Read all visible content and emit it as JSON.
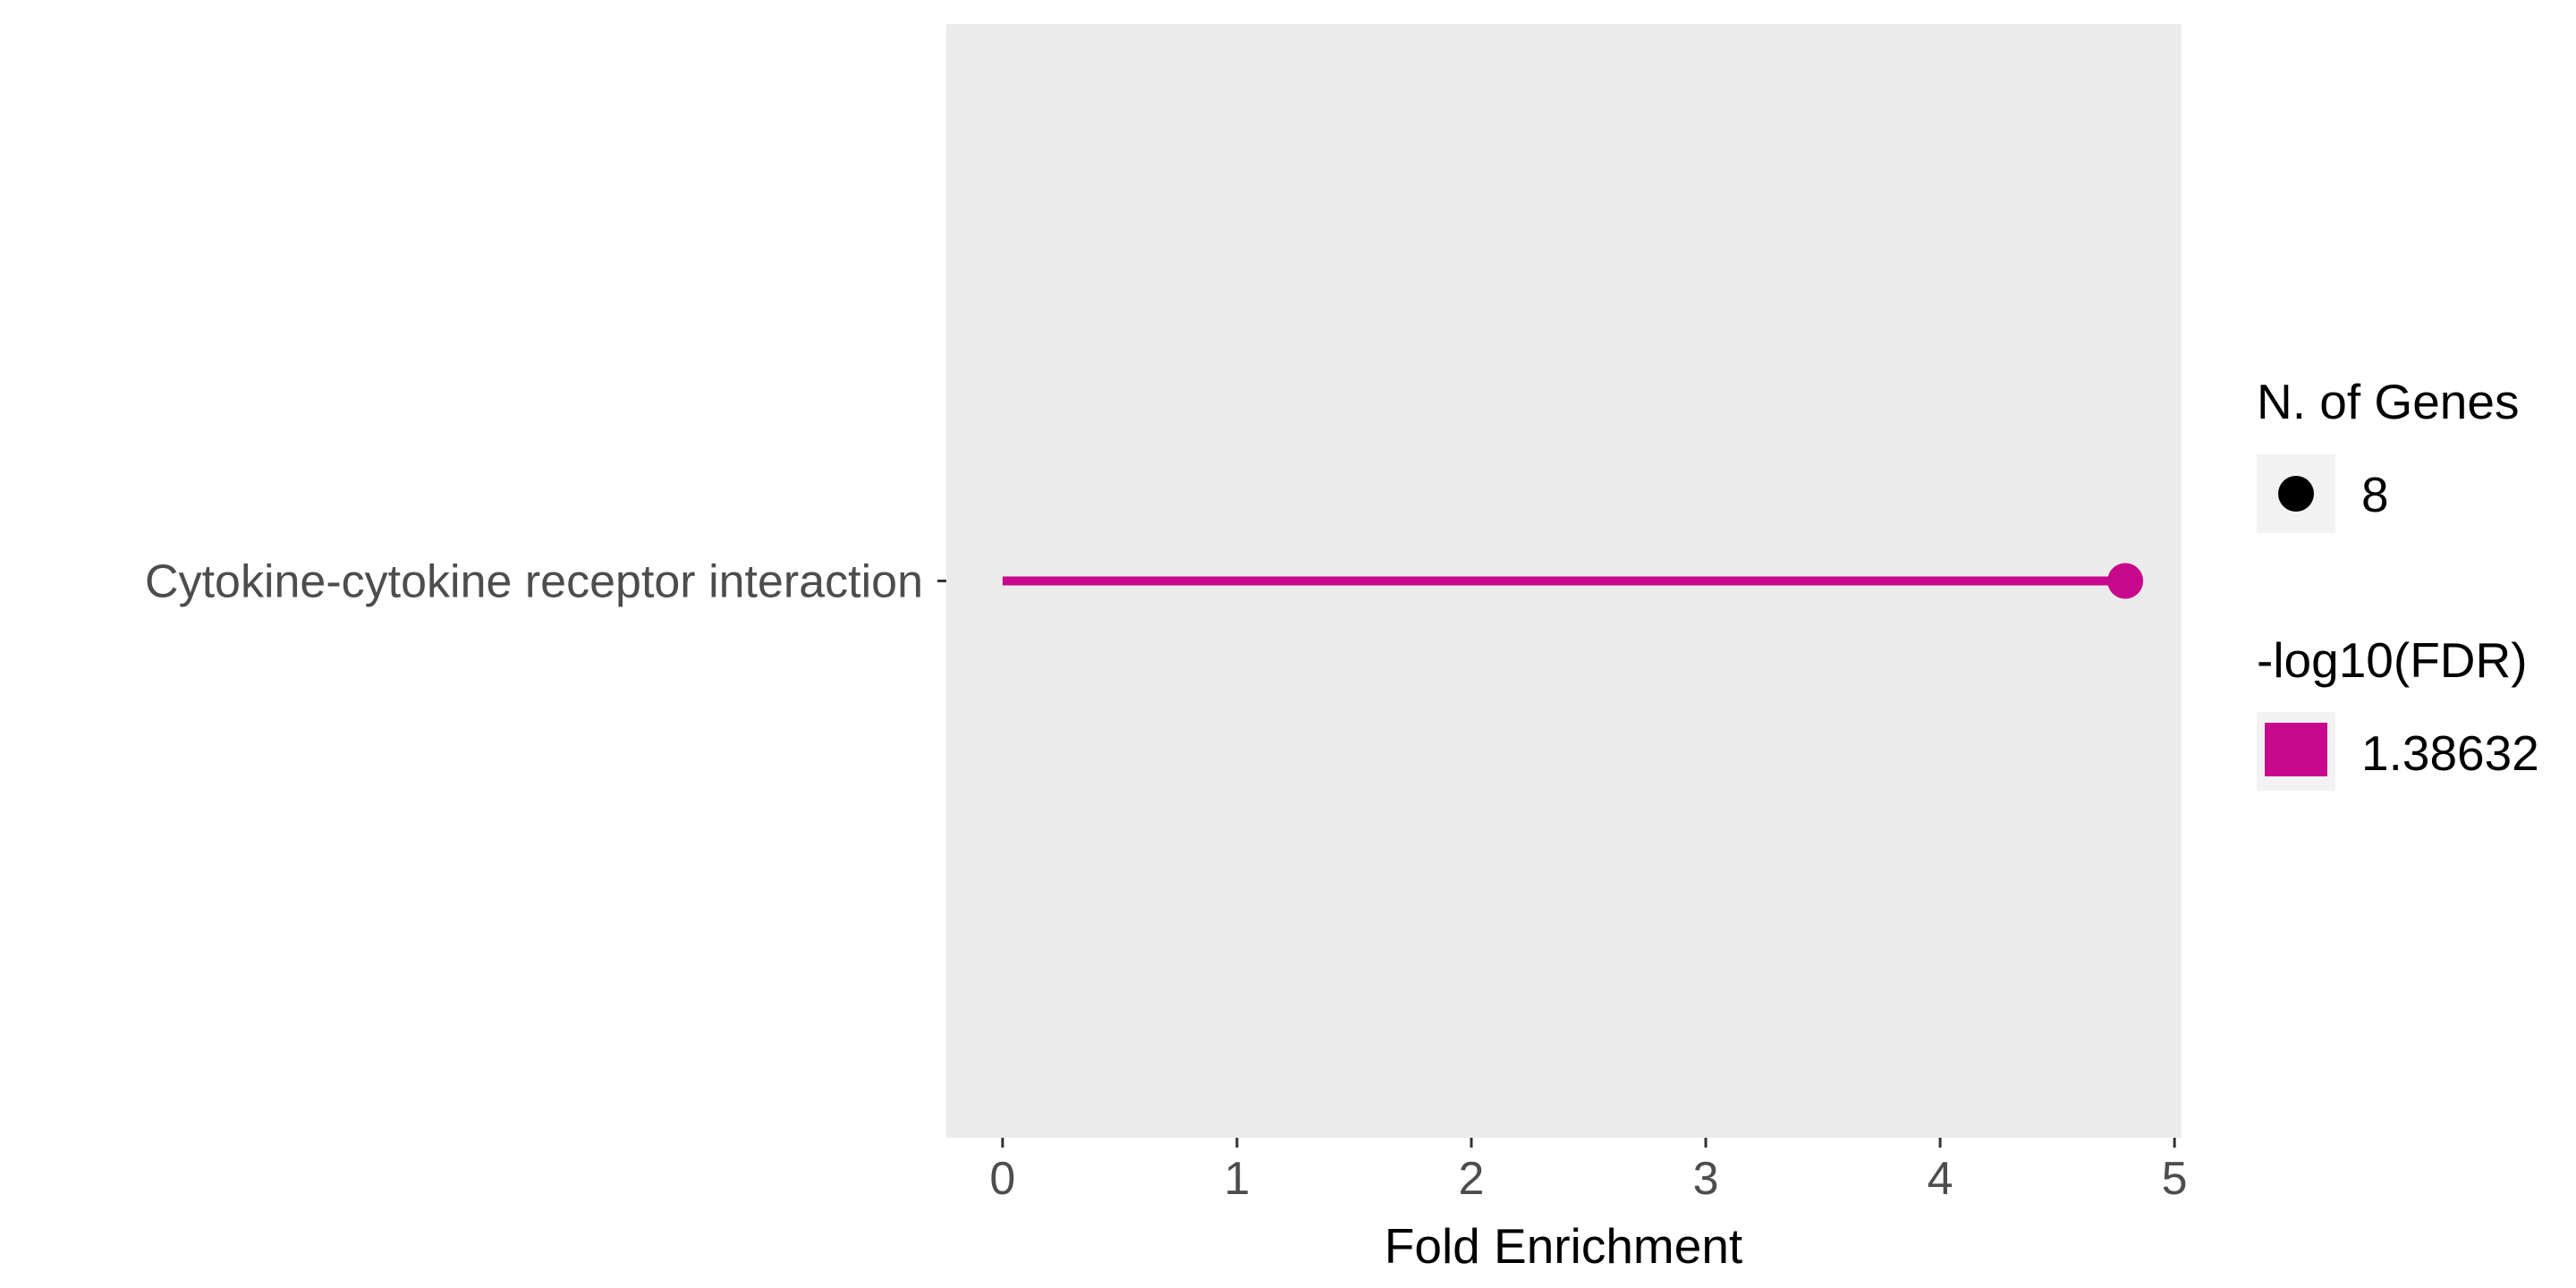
{
  "chart_data": {
    "type": "lollipop",
    "orientation": "horizontal",
    "categories": [
      "Cytokine-cytokine receptor interaction"
    ],
    "values": [
      4.79
    ],
    "n_genes": [
      8
    ],
    "neg_log10_fdr": [
      1.38632
    ],
    "xlabel": "Fold Enrichment",
    "ylabel": "",
    "xlim": [
      -0.24,
      5.03
    ],
    "x_ticks": [
      0,
      1,
      2,
      3,
      4,
      5
    ],
    "grid": false,
    "panel_background": "#ebebeb",
    "series_color": "#c8088c",
    "legend": {
      "placement": "right",
      "size": {
        "title": "N. of Genes",
        "entries": [
          {
            "label": "8"
          }
        ]
      },
      "color": {
        "title": "-log10(FDR)",
        "entries": [
          {
            "label": "1.38632",
            "color": "#c8088c"
          }
        ]
      }
    }
  }
}
